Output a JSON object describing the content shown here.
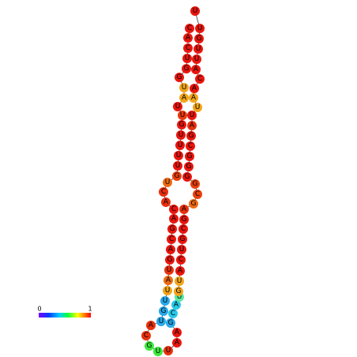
{
  "nodes": [
    {
      "label": "C",
      "color": "#e8160e"
    },
    {
      "label": "A",
      "color": "#e8160e"
    },
    {
      "label": "C",
      "color": "#e8160e"
    },
    {
      "label": "U",
      "color": "#e8160e"
    },
    {
      "label": "G",
      "color": "#e8160e"
    },
    {
      "label": "G",
      "color": "#e8160e"
    },
    {
      "label": "U",
      "color": "#f2a51a"
    },
    {
      "label": "A",
      "color": "#f2a51a"
    },
    {
      "label": "U",
      "color": "#e8160e"
    },
    {
      "label": "U",
      "color": "#e83a0e"
    },
    {
      "label": "G",
      "color": "#e8160e"
    },
    {
      "label": "U",
      "color": "#e8160e"
    },
    {
      "label": "U",
      "color": "#e8160e"
    },
    {
      "label": "U",
      "color": "#e8160e"
    },
    {
      "label": "U",
      "color": "#e8160e"
    },
    {
      "label": "G",
      "color": "#e8400e"
    },
    {
      "label": "U",
      "color": "#ee6a12"
    },
    {
      "label": "C",
      "color": "#e8300e"
    },
    {
      "label": "A",
      "color": "#e8300e"
    },
    {
      "label": "C",
      "color": "#e8160e"
    },
    {
      "label": "A",
      "color": "#e8160e"
    },
    {
      "label": "G",
      "color": "#e8160e"
    },
    {
      "label": "C",
      "color": "#e8160e"
    },
    {
      "label": "A",
      "color": "#e8160e"
    },
    {
      "label": "G",
      "color": "#e8160e"
    },
    {
      "label": "U",
      "color": "#e8300e"
    },
    {
      "label": "A",
      "color": "#ee6a12"
    },
    {
      "label": "U",
      "color": "#f2a51a"
    },
    {
      "label": "U",
      "color": "#28a8e8"
    },
    {
      "label": "G",
      "color": "#28a8e8"
    },
    {
      "label": "U",
      "color": "#28a8e8"
    },
    {
      "label": "A",
      "color": "#e8300e"
    },
    {
      "label": "C",
      "color": "#e8300e"
    },
    {
      "label": "G",
      "color": "#3ce83c"
    },
    {
      "label": "U",
      "color": "#3ce83c"
    },
    {
      "label": "U",
      "color": "#e8300e"
    },
    {
      "label": "A",
      "color": "#e8160e"
    },
    {
      "label": "A",
      "color": "#e8160e"
    },
    {
      "label": "G",
      "color": "#28a8e8"
    },
    {
      "label": "C",
      "color": "#28c8e8"
    },
    {
      "label": "A",
      "color": "#28c8e8"
    },
    {
      "label": "U",
      "color": "#5ae8a0"
    },
    {
      "label": "G",
      "color": "#f2a51a"
    },
    {
      "label": "U",
      "color": "#f2a51a"
    },
    {
      "label": "A",
      "color": "#e8160e"
    },
    {
      "label": "C",
      "color": "#e8160e"
    },
    {
      "label": "U",
      "color": "#e8160e"
    },
    {
      "label": "G",
      "color": "#e8160e"
    },
    {
      "label": "C",
      "color": "#e8160e"
    },
    {
      "label": "G",
      "color": "#e8160e"
    },
    {
      "label": "A",
      "color": "#e8300e"
    },
    {
      "label": "G",
      "color": "#ee6a12"
    },
    {
      "label": "C",
      "color": "#e8400e"
    },
    {
      "label": "G",
      "color": "#e8400e"
    },
    {
      "label": "G",
      "color": "#e8160e"
    },
    {
      "label": "G",
      "color": "#e8160e"
    },
    {
      "label": "G",
      "color": "#e8160e"
    },
    {
      "label": "C",
      "color": "#e8160e"
    },
    {
      "label": "G",
      "color": "#e8160e"
    },
    {
      "label": "A",
      "color": "#e8300e"
    },
    {
      "label": "U",
      "color": "#e8160e"
    },
    {
      "label": "U",
      "color": "#f2a51a"
    },
    {
      "label": "A",
      "color": "#f2a51a"
    },
    {
      "label": "A",
      "color": "#e8160e"
    },
    {
      "label": "C",
      "color": "#e8160e"
    },
    {
      "label": "A",
      "color": "#e8160e"
    },
    {
      "label": "U",
      "color": "#e8160e"
    },
    {
      "label": "U",
      "color": "#e8160e"
    },
    {
      "label": "G",
      "color": "#e8160e"
    },
    {
      "label": "U",
      "color": "#e8160e"
    },
    {
      "label": "U",
      "color": "#e8160e"
    }
  ],
  "colorbar": {
    "min_label": "0",
    "max_label": "1"
  }
}
